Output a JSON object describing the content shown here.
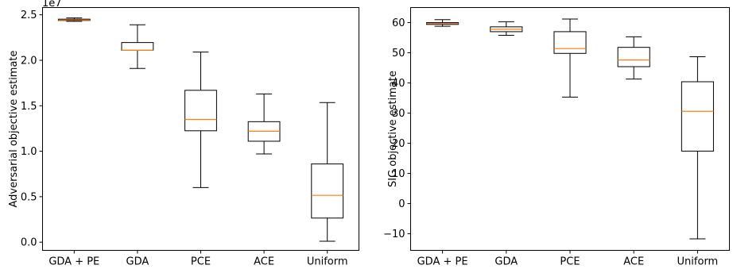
{
  "chart_data": [
    {
      "type": "boxplot",
      "title": "",
      "xlabel": "",
      "ylabel": "Adversarial objective estimate",
      "scale_label": "1e7",
      "ylim": [
        -0.09,
        2.58
      ],
      "yticks": [
        0.0,
        0.5,
        1.0,
        1.5,
        2.0,
        2.5
      ],
      "ytick_labels": [
        "0.0",
        "0.5",
        "1.0",
        "1.5",
        "2.0",
        "2.5"
      ],
      "grid": false,
      "categories": [
        "GDA + PE",
        "GDA",
        "PCE",
        "ACE",
        "Uniform"
      ],
      "boxes": [
        {
          "whisker_low": 2.428,
          "q1": 2.438,
          "median": 2.443,
          "q3": 2.452,
          "whisker_high": 2.465
        },
        {
          "whisker_low": 1.91,
          "q1": 2.11,
          "median": 2.11,
          "q3": 2.195,
          "whisker_high": 2.39
        },
        {
          "whisker_low": 0.6,
          "q1": 1.225,
          "median": 1.35,
          "q3": 1.67,
          "whisker_high": 2.09
        },
        {
          "whisker_low": 0.97,
          "q1": 1.11,
          "median": 1.22,
          "q3": 1.325,
          "whisker_high": 1.63
        },
        {
          "whisker_low": 0.01,
          "q1": 0.265,
          "median": 0.515,
          "q3": 0.86,
          "whisker_high": 1.535
        }
      ]
    },
    {
      "type": "boxplot",
      "title": "",
      "xlabel": "",
      "ylabel": "SIG objective estimate",
      "ylim": [
        -15.5,
        65.0
      ],
      "yticks": [
        -10,
        0,
        10,
        20,
        30,
        40,
        50,
        60
      ],
      "ytick_labels": [
        "−10",
        "0",
        "10",
        "20",
        "30",
        "40",
        "50",
        "60"
      ],
      "grid": false,
      "categories": [
        "GDA + PE",
        "GDA",
        "PCE",
        "ACE",
        "Uniform"
      ],
      "boxes": [
        {
          "whisker_low": 58.8,
          "q1": 59.4,
          "median": 59.7,
          "q3": 60.0,
          "whisker_high": 61.0
        },
        {
          "whisker_low": 55.8,
          "q1": 57.0,
          "median": 57.8,
          "q3": 58.6,
          "whisker_high": 60.3
        },
        {
          "whisker_low": 35.3,
          "q1": 49.8,
          "median": 51.4,
          "q3": 57.0,
          "whisker_high": 61.2
        },
        {
          "whisker_low": 41.3,
          "q1": 45.4,
          "median": 47.6,
          "q3": 51.8,
          "whisker_high": 55.3
        },
        {
          "whisker_low": -11.7,
          "q1": 17.4,
          "median": 30.6,
          "q3": 40.4,
          "whisker_high": 48.7
        }
      ]
    }
  ],
  "colors": {
    "box_edge": "#000000",
    "median": "#ff7f0e",
    "background": "#ffffff"
  }
}
